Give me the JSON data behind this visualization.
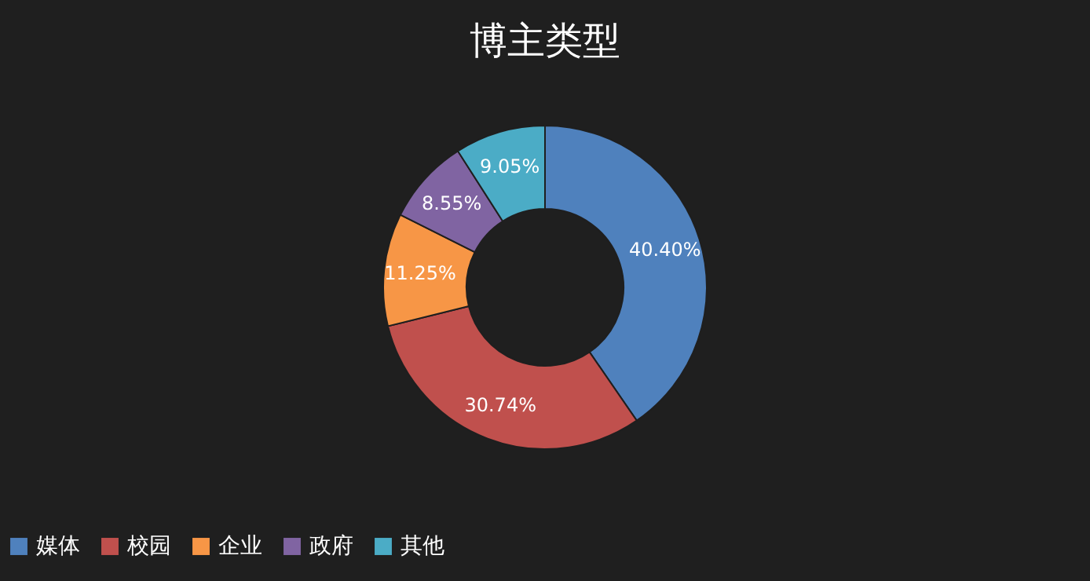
{
  "chart_data": {
    "type": "donut",
    "title": "博主类型",
    "categories": [
      "媒体",
      "校园",
      "企业",
      "政府",
      "其他"
    ],
    "values": [
      40.4,
      30.74,
      11.25,
      8.55,
      9.05
    ],
    "colors": [
      "#4f81bd",
      "#c0504d",
      "#f79646",
      "#8064a2",
      "#4bacc6"
    ],
    "value_labels": [
      "40.40%",
      "30.74%",
      "11.25%",
      "8.55%",
      "9.05%"
    ],
    "legend": "bottom"
  }
}
